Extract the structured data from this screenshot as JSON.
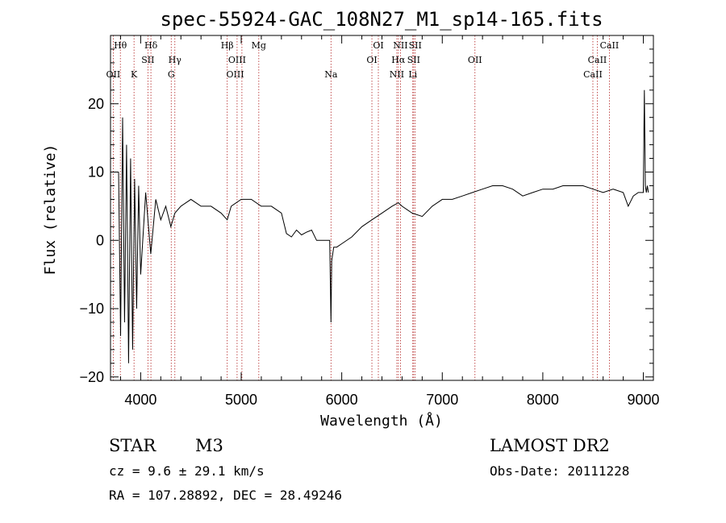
{
  "chart_data": {
    "type": "line",
    "title": "spec-55924-GAC_108N27_M1_sp14-165.fits",
    "xlabel": "Wavelength (Å)",
    "ylabel": "Flux (relative)",
    "xlim": [
      3700,
      9100
    ],
    "ylim": [
      -20.5,
      30
    ],
    "x_ticks": [
      4000,
      5000,
      6000,
      7000,
      8000,
      9000
    ],
    "y_ticks": [
      -20,
      -10,
      0,
      10,
      20
    ],
    "grid": false,
    "series": [
      {
        "x": [
          3780,
          3800,
          3820,
          3840,
          3860,
          3880,
          3900,
          3920,
          3940,
          3960,
          3980,
          4000,
          4050,
          4100,
          4150,
          4200,
          4250,
          4300,
          4340,
          4400,
          4500,
          4600,
          4700,
          4800,
          4861,
          4900,
          5000,
          5100,
          5200,
          5300,
          5400,
          5450,
          5500,
          5550,
          5600,
          5650,
          5700,
          5750,
          5800,
          5850,
          5880,
          5893,
          5900,
          5920,
          5950,
          6000,
          6100,
          6200,
          6300,
          6400,
          6500,
          6563,
          6600,
          6700,
          6800,
          6900,
          7000,
          7100,
          7200,
          7300,
          7400,
          7500,
          7600,
          7700,
          7800,
          7900,
          8000,
          8100,
          8200,
          8300,
          8400,
          8500,
          8600,
          8700,
          8800,
          8850,
          8900,
          8950,
          9000,
          9010,
          9020,
          9030,
          9040,
          9050
        ],
        "y": [
          10,
          -14,
          18,
          -12,
          14,
          -18,
          12,
          -16,
          9,
          -10,
          8,
          -5,
          7,
          -2,
          6,
          3,
          5,
          2,
          4,
          5,
          6,
          5,
          5,
          4,
          3,
          5,
          6,
          6,
          5,
          5,
          4,
          1,
          0.5,
          1.5,
          0.8,
          1.2,
          1.5,
          0,
          0,
          0,
          0,
          -12,
          -3,
          -1,
          -1,
          -0.5,
          0.5,
          2,
          3,
          4,
          5,
          5.5,
          5,
          4,
          3.5,
          5,
          6,
          6,
          6.5,
          7,
          7.5,
          8,
          8,
          7.5,
          6.5,
          7,
          7.5,
          7.5,
          8,
          8,
          8,
          7.5,
          7,
          7.5,
          7,
          5,
          6.5,
          7,
          7,
          22,
          8,
          7,
          8,
          7
        ]
      }
    ],
    "line_labels": [
      {
        "label": "Hθ",
        "wave": 3798,
        "row": 0
      },
      {
        "label": "OII",
        "wave": 3727,
        "row": 2
      },
      {
        "label": "K",
        "wave": 3934,
        "row": 2
      },
      {
        "label": "Hδ",
        "wave": 4102,
        "row": 0
      },
      {
        "label": "SII",
        "wave": 4072,
        "row": 1
      },
      {
        "label": "Hγ",
        "wave": 4340,
        "row": 1
      },
      {
        "label": "G",
        "wave": 4304,
        "row": 2
      },
      {
        "label": "Hβ",
        "wave": 4861,
        "row": 0
      },
      {
        "label": "OIII",
        "wave": 4959,
        "row": 1
      },
      {
        "label": "OIII",
        "wave": 4940,
        "row": 2
      },
      {
        "label": "Mg",
        "wave": 5175,
        "row": 0
      },
      {
        "label": "Na",
        "wave": 5893,
        "row": 2
      },
      {
        "label": "OI",
        "wave": 6364,
        "row": 0
      },
      {
        "label": "OI",
        "wave": 6300,
        "row": 1
      },
      {
        "label": "NII",
        "wave": 6584,
        "row": 0
      },
      {
        "label": "SII",
        "wave": 6731,
        "row": 0
      },
      {
        "label": "Hα",
        "wave": 6563,
        "row": 1
      },
      {
        "label": "SII",
        "wave": 6716,
        "row": 1
      },
      {
        "label": "NII",
        "wave": 6548,
        "row": 2
      },
      {
        "label": "Li",
        "wave": 6707,
        "row": 2
      },
      {
        "label": "OII",
        "wave": 7325,
        "row": 1
      },
      {
        "label": "CaII",
        "wave": 8662,
        "row": 0
      },
      {
        "label": "CaII",
        "wave": 8542,
        "row": 1
      },
      {
        "label": "CaII",
        "wave": 8498,
        "row": 2
      }
    ],
    "line_marks": [
      3727,
      3798,
      3934,
      4072,
      4102,
      4304,
      4340,
      4861,
      4959,
      5007,
      5175,
      5893,
      6300,
      6364,
      6548,
      6563,
      6584,
      6707,
      6716,
      6731,
      7325,
      8498,
      8542,
      8662
    ]
  },
  "footer": {
    "class_label": "STAR",
    "subclass": "M3",
    "cz": "cz = 9.6 ± 29.1 km/s",
    "coords": "RA = 107.28892, DEC =  28.49246",
    "survey": "LAMOST DR2",
    "obs_date": "Obs-Date: 20111228"
  }
}
